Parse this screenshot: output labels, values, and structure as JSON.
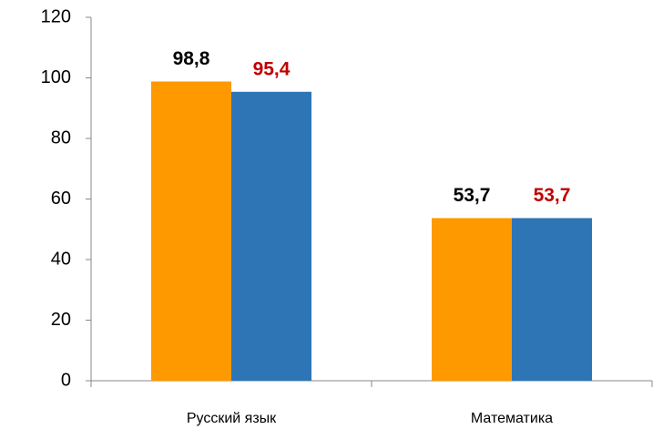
{
  "chart_data": {
    "type": "bar",
    "categories": [
      "Русский язык",
      "Математика"
    ],
    "series": [
      {
        "color": "#ff9900",
        "label_color": "#000000",
        "values": [
          98.8,
          53.7
        ],
        "value_labels": [
          "98,8",
          "53,7"
        ]
      },
      {
        "color": "#2e75b6",
        "label_color": "#c00000",
        "values": [
          95.4,
          53.7
        ],
        "value_labels": [
          "95,4",
          "53,7"
        ]
      }
    ],
    "ylim": [
      0,
      120
    ],
    "yticks": [
      0,
      20,
      40,
      60,
      80,
      100,
      120
    ],
    "grid": false
  }
}
